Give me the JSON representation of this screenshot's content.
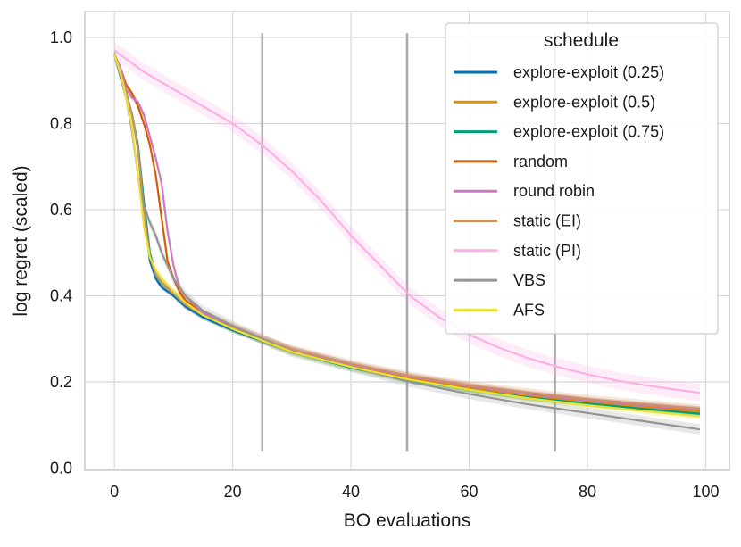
{
  "chart_data": {
    "type": "line",
    "title": "",
    "xlabel": "BO evaluations",
    "ylabel": "log regret (scaled)",
    "xlim": [
      -5,
      104
    ],
    "ylim": [
      -0.005,
      1.06
    ],
    "xticks": [
      0,
      20,
      40,
      60,
      80,
      100
    ],
    "yticks": [
      0.0,
      0.2,
      0.4,
      0.6,
      0.8,
      1.0
    ],
    "grid": true,
    "legend": {
      "title": "schedule",
      "placement": "top-right"
    },
    "vertical_markers": [
      {
        "x": 25,
        "y_from": 0.04,
        "y_to": 1.01
      },
      {
        "x": 49.5,
        "y_from": 0.04,
        "y_to": 1.01
      },
      {
        "x": 74.5,
        "y_from": 0.04,
        "y_to": 1.01
      }
    ],
    "series": [
      {
        "name": "explore-exploit (0.25)",
        "color": "#0173b2",
        "x": [
          0,
          1,
          2,
          3,
          4,
          5,
          6,
          7,
          8,
          10,
          12,
          15,
          20,
          25,
          30,
          40,
          50,
          60,
          70,
          80,
          90,
          99
        ],
        "y": [
          0.96,
          0.92,
          0.87,
          0.82,
          0.74,
          0.6,
          0.48,
          0.44,
          0.42,
          0.4,
          0.375,
          0.35,
          0.32,
          0.295,
          0.27,
          0.235,
          0.205,
          0.182,
          0.164,
          0.15,
          0.138,
          0.128
        ],
        "band": 0.006
      },
      {
        "name": "explore-exploit (0.5)",
        "color": "#de8f05",
        "x": [
          0,
          1,
          2,
          3,
          4,
          5,
          6,
          7,
          8,
          10,
          12,
          15,
          20,
          25,
          30,
          40,
          50,
          60,
          70,
          80,
          90,
          99
        ],
        "y": [
          0.96,
          0.92,
          0.87,
          0.82,
          0.74,
          0.6,
          0.49,
          0.45,
          0.43,
          0.405,
          0.38,
          0.355,
          0.325,
          0.298,
          0.272,
          0.238,
          0.208,
          0.186,
          0.168,
          0.153,
          0.141,
          0.131
        ],
        "band": 0.006
      },
      {
        "name": "explore-exploit (0.75)",
        "color": "#029e73",
        "x": [
          0,
          1,
          2,
          3,
          4,
          5,
          6,
          7,
          8,
          10,
          12,
          15,
          20,
          25,
          30,
          40,
          50,
          60,
          70,
          80,
          90,
          99
        ],
        "y": [
          0.96,
          0.92,
          0.87,
          0.82,
          0.75,
          0.62,
          0.5,
          0.45,
          0.43,
          0.405,
          0.38,
          0.355,
          0.323,
          0.296,
          0.27,
          0.233,
          0.204,
          0.182,
          0.164,
          0.15,
          0.137,
          0.126
        ],
        "band": 0.008
      },
      {
        "name": "random",
        "color": "#d55e00",
        "x": [
          0,
          1,
          2,
          3,
          4,
          5,
          6,
          7,
          8,
          9,
          10,
          11,
          12,
          15,
          20,
          25,
          30,
          40,
          50,
          60,
          70,
          80,
          90,
          99
        ],
        "y": [
          0.96,
          0.93,
          0.89,
          0.87,
          0.84,
          0.8,
          0.75,
          0.68,
          0.58,
          0.48,
          0.44,
          0.41,
          0.39,
          0.36,
          0.33,
          0.3,
          0.275,
          0.24,
          0.212,
          0.19,
          0.172,
          0.157,
          0.145,
          0.135
        ],
        "band": 0.008
      },
      {
        "name": "round robin",
        "color": "#cc78bc",
        "x": [
          0,
          1,
          2,
          3,
          4,
          5,
          6,
          7,
          8,
          9,
          10,
          11,
          12,
          15,
          20,
          25,
          30,
          40,
          50,
          60,
          70,
          80,
          90,
          99
        ],
        "y": [
          0.96,
          0.93,
          0.88,
          0.86,
          0.85,
          0.82,
          0.77,
          0.72,
          0.66,
          0.55,
          0.47,
          0.42,
          0.4,
          0.36,
          0.325,
          0.3,
          0.275,
          0.24,
          0.212,
          0.19,
          0.172,
          0.157,
          0.145,
          0.136
        ],
        "band": 0.008
      },
      {
        "name": "static (EI)",
        "color": "#ca9161",
        "x": [
          0,
          1,
          2,
          3,
          4,
          5,
          6,
          7,
          8,
          10,
          12,
          15,
          20,
          25,
          30,
          40,
          50,
          60,
          70,
          80,
          90,
          99
        ],
        "y": [
          0.96,
          0.92,
          0.87,
          0.82,
          0.74,
          0.6,
          0.49,
          0.45,
          0.43,
          0.405,
          0.38,
          0.355,
          0.325,
          0.3,
          0.276,
          0.242,
          0.214,
          0.192,
          0.175,
          0.16,
          0.148,
          0.138
        ],
        "band": 0.01
      },
      {
        "name": "static (PI)",
        "color": "#fbafe4",
        "x": [
          0,
          1,
          2,
          5,
          10,
          15,
          20,
          25,
          30,
          35,
          40,
          45,
          50,
          55,
          60,
          65,
          70,
          75,
          80,
          85,
          90,
          95,
          99
        ],
        "y": [
          0.97,
          0.96,
          0.95,
          0.92,
          0.88,
          0.84,
          0.8,
          0.75,
          0.69,
          0.62,
          0.54,
          0.47,
          0.4,
          0.35,
          0.31,
          0.28,
          0.255,
          0.235,
          0.218,
          0.203,
          0.192,
          0.182,
          0.175
        ],
        "band": 0.02
      },
      {
        "name": "VBS",
        "color": "#949494",
        "x": [
          0,
          1,
          2,
          3,
          4,
          5,
          6,
          7,
          8,
          10,
          12,
          15,
          20,
          25,
          30,
          40,
          50,
          60,
          70,
          80,
          90,
          99
        ],
        "y": [
          0.96,
          0.91,
          0.86,
          0.78,
          0.68,
          0.61,
          0.57,
          0.54,
          0.5,
          0.44,
          0.4,
          0.365,
          0.33,
          0.3,
          0.27,
          0.235,
          0.2,
          0.172,
          0.148,
          0.128,
          0.108,
          0.09
        ],
        "band": 0.012
      },
      {
        "name": "AFS",
        "color": "#ece133",
        "x": [
          0,
          1,
          2,
          3,
          4,
          5,
          6,
          7,
          8,
          10,
          12,
          15,
          20,
          25,
          30,
          40,
          50,
          60,
          70,
          80,
          90,
          99
        ],
        "y": [
          0.96,
          0.92,
          0.86,
          0.79,
          0.68,
          0.56,
          0.49,
          0.46,
          0.44,
          0.41,
          0.385,
          0.355,
          0.323,
          0.296,
          0.27,
          0.235,
          0.205,
          0.182,
          0.162,
          0.146,
          0.132,
          0.12
        ],
        "band": 0.008
      }
    ]
  }
}
